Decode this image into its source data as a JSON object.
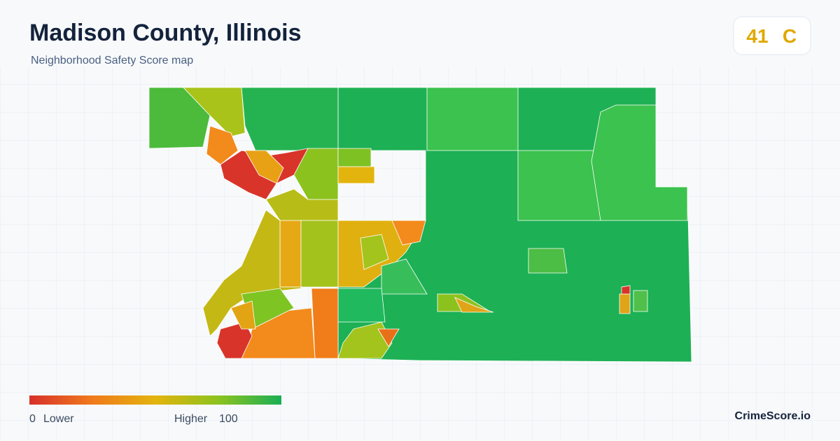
{
  "header": {
    "title": "Madison County, Illinois",
    "subtitle": "Neighborhood Safety Score map"
  },
  "score": {
    "value": "41",
    "grade": "C"
  },
  "legend": {
    "min": "0",
    "min_label": "Lower",
    "max_label": "Higher",
    "max": "100"
  },
  "brand": "CrimeScore.io"
}
